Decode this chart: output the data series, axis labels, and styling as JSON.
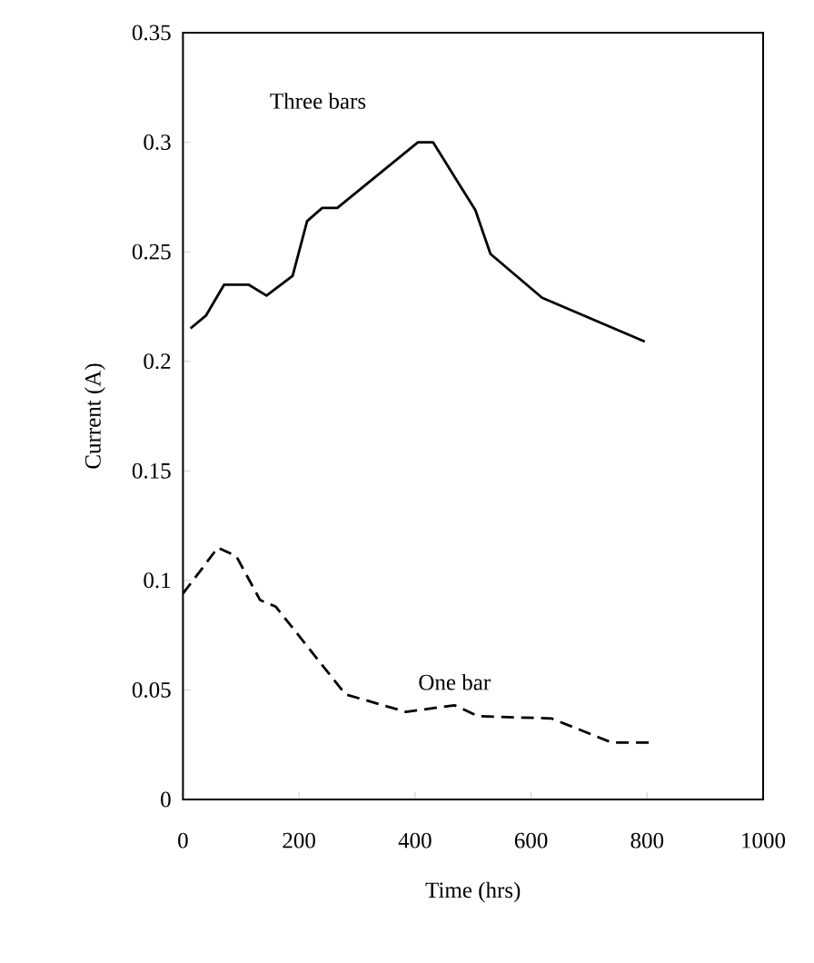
{
  "chart_data": {
    "type": "line",
    "xlabel": "Time (hrs)",
    "ylabel": "Current (A)",
    "xlim": [
      0,
      1000
    ],
    "ylim": [
      0,
      0.35
    ],
    "xticks": [
      0,
      200,
      400,
      600,
      800,
      1000
    ],
    "yticks": [
      0,
      0.05,
      0.1,
      0.15,
      0.2,
      0.25,
      0.3,
      0.35
    ],
    "grid": false,
    "legend": false,
    "marker": "none",
    "series": [
      {
        "name": "Three bars",
        "color": "#000000",
        "line_style": "solid",
        "x": [
          13,
          40,
          71,
          113,
          144,
          189,
          214,
          240,
          266,
          405,
          431,
          504,
          530,
          619,
          796
        ],
        "values": [
          0.215,
          0.221,
          0.235,
          0.235,
          0.23,
          0.239,
          0.264,
          0.27,
          0.27,
          0.3,
          0.3,
          0.269,
          0.249,
          0.229,
          0.209
        ]
      },
      {
        "name": "One bar",
        "color": "#000000",
        "line_style": "dashed",
        "x": [
          0,
          29,
          60,
          92,
          133,
          160,
          217,
          280,
          384,
          468,
          509,
          635,
          739,
          812
        ],
        "values": [
          0.094,
          0.104,
          0.115,
          0.111,
          0.091,
          0.088,
          0.069,
          0.048,
          0.04,
          0.043,
          0.038,
          0.037,
          0.026,
          0.026
        ]
      }
    ]
  }
}
